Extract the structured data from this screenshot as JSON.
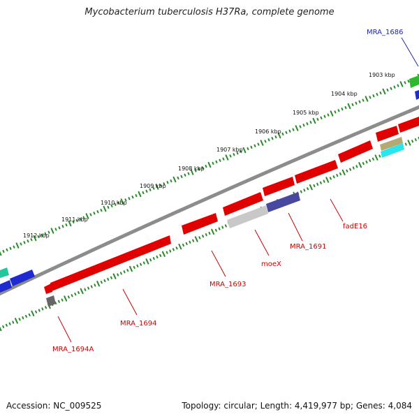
{
  "title": "Mycobacterium tuberculosis H37Ra, complete genome",
  "footer": {
    "accession": "Accession: NC_009525",
    "summary": "Topology: circular; Length: 4,419,977 bp; Genes: 4,084"
  },
  "colors": {
    "backbone": "#8c8c8c",
    "tick": "#2a8a2a",
    "gene_red": "#e00000",
    "label_red": "#cc0000",
    "label_blue": "#1f2aa8"
  },
  "ticks": [
    "1903 kbp",
    "1904 kbp",
    "1905 kbp",
    "1906 kbp",
    "1907 kbp",
    "1908 kbp",
    "1909 kbp",
    "1910 kbp",
    "1911 kbp",
    "1912 kbp"
  ],
  "genes": {
    "mra_1686": "MRA_1686",
    "fade16": "fadE16",
    "mra_1691": "MRA_1691",
    "moex": "moeX",
    "mra_1693": "MRA_1693",
    "mra_1694": "MRA_1694",
    "mra_1694a": "MRA_1694A"
  }
}
